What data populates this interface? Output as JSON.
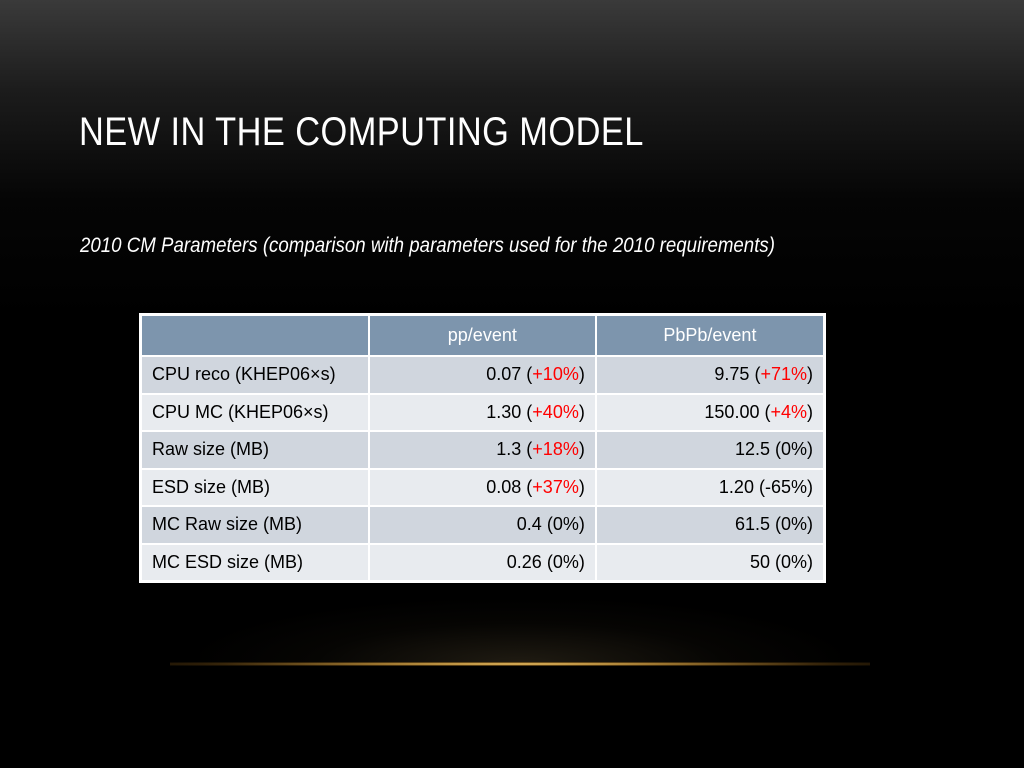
{
  "slide": {
    "title": "NEW IN THE COMPUTING MODEL",
    "subtitle": "2010 CM Parameters (comparison with parameters used for the 2010 requirements)"
  },
  "table": {
    "headers": [
      "",
      "pp/event",
      "PbPb/event"
    ],
    "rows": [
      {
        "label": "CPU reco (KHEP06×s)",
        "pp": {
          "value": "0.07",
          "change": "+10%",
          "highlight": true
        },
        "pbpb": {
          "value": "9.75",
          "change": "+71%",
          "highlight": true
        }
      },
      {
        "label": "CPU MC (KHEP06×s)",
        "pp": {
          "value": "1.30",
          "change": "+40%",
          "highlight": true
        },
        "pbpb": {
          "value": "150.00",
          "change": "+4%",
          "highlight": true
        }
      },
      {
        "label": "Raw size (MB)",
        "pp": {
          "value": "1.3",
          "change": "+18%",
          "highlight": true
        },
        "pbpb": {
          "value": "12.5",
          "change": "0%",
          "highlight": false
        }
      },
      {
        "label": "ESD size (MB)",
        "pp": {
          "value": "0.08",
          "change": "+37%",
          "highlight": true
        },
        "pbpb": {
          "value": "1.20",
          "change": "-65%",
          "highlight": false
        }
      },
      {
        "label": "MC Raw size (MB)",
        "pp": {
          "value": "0.4",
          "change": "0%",
          "highlight": false
        },
        "pbpb": {
          "value": "61.5",
          "change": "0%",
          "highlight": false
        }
      },
      {
        "label": "MC ESD size (MB)",
        "pp": {
          "value": "0.26",
          "change": "0%",
          "highlight": false
        },
        "pbpb": {
          "value": "50",
          "change": "0%",
          "highlight": false
        }
      }
    ]
  },
  "colors": {
    "header_bg": "#7d95ad",
    "row_odd_bg": "#d0d6de",
    "row_even_bg": "#e8ebef",
    "increase_text": "#ff0000",
    "accent_line": "#d8b060"
  }
}
